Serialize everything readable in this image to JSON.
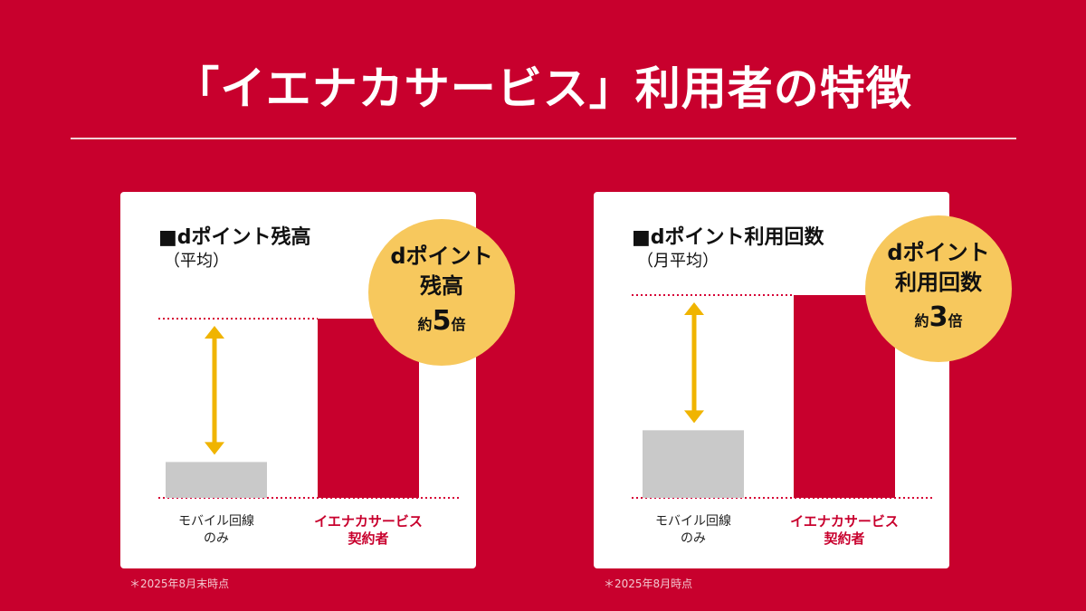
{
  "title": "「イエナカサービス」利用者の特徴",
  "colors": {
    "background": "#c8002d",
    "bar_base": "#c9c9c9",
    "bar_service": "#c8002d",
    "arrow": "#f0b400",
    "badge": "#f7c85d",
    "dotted": "#d60036"
  },
  "panels": [
    {
      "title": "■dポイント残高",
      "subtitle": "（平均）",
      "badge_line1": "dポイント",
      "badge_line2": "残高",
      "badge_prefix": "約",
      "badge_number": "5",
      "badge_suffix": "倍",
      "category_gray_line1": "モバイル回線",
      "category_gray_line2": "のみ",
      "category_red_line1": "イエナカサービス",
      "category_red_line2": "契約者",
      "note": "＊2025年8月末時点"
    },
    {
      "title": "■dポイント利用回数",
      "subtitle": "（月平均）",
      "badge_line1": "dポイント",
      "badge_line2": "利用回数",
      "badge_prefix": "約",
      "badge_number": "3",
      "badge_suffix": "倍",
      "category_gray_line1": "モバイル回線",
      "category_gray_line2": "のみ",
      "category_red_line1": "イエナカサービス",
      "category_red_line2": "契約者",
      "note": "＊2025年8月時点"
    }
  ],
  "chart_data": [
    {
      "type": "bar",
      "categories": [
        "モバイル回線のみ",
        "イエナカサービス契約者"
      ],
      "values": [
        1,
        5
      ],
      "annotation": "約5倍"
    },
    {
      "type": "bar",
      "categories": [
        "モバイル回線のみ",
        "イエナカサービス契約者"
      ],
      "values": [
        1,
        3
      ],
      "annotation": "約3倍"
    }
  ]
}
